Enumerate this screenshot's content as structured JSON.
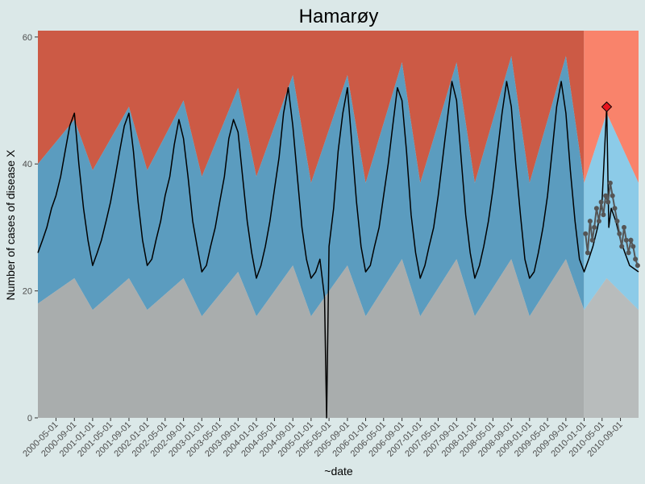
{
  "chart_data": {
    "type": "line",
    "title": "Hamarøy",
    "xlabel": "~date",
    "ylabel": "Number of cases of disease X",
    "ylim": [
      0,
      61
    ],
    "y_ticks": [
      0,
      20,
      40,
      60
    ],
    "x_range": [
      "2000-01-01",
      "2010-12-31"
    ],
    "x_tick_labels": [
      "2000-05-01",
      "2000-09-01",
      "2001-01-01",
      "2001-05-01",
      "2001-09-01",
      "2002-01-01",
      "2002-05-01",
      "2002-09-01",
      "2003-01-01",
      "2003-05-01",
      "2003-09-01",
      "2004-01-01",
      "2004-05-01",
      "2004-09-01",
      "2005-01-01",
      "2005-05-01",
      "2005-09-01",
      "2006-01-01",
      "2006-05-01",
      "2006-09-01",
      "2007-01-01",
      "2007-05-01",
      "2007-09-01",
      "2008-01-01",
      "2008-05-01",
      "2008-09-01",
      "2009-01-01",
      "2009-05-01",
      "2009-09-01",
      "2010-01-01",
      "2010-05-01",
      "2010-09-01"
    ],
    "baseline_end": "2009-12-31",
    "zones": {
      "baseline_low": "#a9adad",
      "baseline_mid": "#5b9cbf",
      "baseline_high": "#cc5a45",
      "current_low": "#b8bcbc",
      "current_mid": "#8ccbe8",
      "current_high": "#f9836b"
    },
    "threshold_series": [
      {
        "date": "2000-01-01",
        "lower": 18,
        "upper": 40,
        "max": 61
      },
      {
        "date": "2000-09-01",
        "lower": 22,
        "upper": 47,
        "max": 61
      },
      {
        "date": "2001-01-01",
        "lower": 17,
        "upper": 39,
        "max": 61
      },
      {
        "date": "2001-09-01",
        "lower": 22,
        "upper": 49,
        "max": 61
      },
      {
        "date": "2002-01-01",
        "lower": 17,
        "upper": 39,
        "max": 61
      },
      {
        "date": "2002-09-01",
        "lower": 22,
        "upper": 50,
        "max": 61
      },
      {
        "date": "2003-01-01",
        "lower": 16,
        "upper": 38,
        "max": 61
      },
      {
        "date": "2003-09-01",
        "lower": 23,
        "upper": 52,
        "max": 61
      },
      {
        "date": "2004-01-01",
        "lower": 16,
        "upper": 38,
        "max": 61
      },
      {
        "date": "2004-09-01",
        "lower": 24,
        "upper": 54,
        "max": 61
      },
      {
        "date": "2005-01-01",
        "lower": 16,
        "upper": 37,
        "max": 61
      },
      {
        "date": "2005-09-01",
        "lower": 24,
        "upper": 54,
        "max": 61
      },
      {
        "date": "2006-01-01",
        "lower": 16,
        "upper": 37,
        "max": 61
      },
      {
        "date": "2006-09-01",
        "lower": 25,
        "upper": 56,
        "max": 61
      },
      {
        "date": "2007-01-01",
        "lower": 16,
        "upper": 37,
        "max": 61
      },
      {
        "date": "2007-09-01",
        "lower": 25,
        "upper": 56,
        "max": 61
      },
      {
        "date": "2008-01-01",
        "lower": 16,
        "upper": 37,
        "max": 61
      },
      {
        "date": "2008-09-01",
        "lower": 25,
        "upper": 57,
        "max": 61
      },
      {
        "date": "2009-01-01",
        "lower": 16,
        "upper": 37,
        "max": 61
      },
      {
        "date": "2009-09-01",
        "lower": 25,
        "upper": 57,
        "max": 61
      },
      {
        "date": "2010-01-01",
        "lower": 17,
        "upper": 37,
        "max": 61
      },
      {
        "date": "2010-06-01",
        "lower": 22,
        "upper": 48,
        "max": 61
      },
      {
        "date": "2010-12-31",
        "lower": 17,
        "upper": 37,
        "max": 61
      }
    ],
    "series": [
      {
        "style": "line",
        "color": "#000000",
        "points": [
          [
            "2000-01-01",
            26
          ],
          [
            "2000-02-01",
            28
          ],
          [
            "2000-03-01",
            30
          ],
          [
            "2000-04-01",
            33
          ],
          [
            "2000-05-01",
            35
          ],
          [
            "2000-06-01",
            38
          ],
          [
            "2000-07-01",
            42
          ],
          [
            "2000-08-01",
            46
          ],
          [
            "2000-09-01",
            48
          ],
          [
            "2000-10-01",
            40
          ],
          [
            "2000-11-01",
            33
          ],
          [
            "2000-12-01",
            28
          ],
          [
            "2001-01-01",
            24
          ],
          [
            "2001-02-01",
            26
          ],
          [
            "2001-03-01",
            28
          ],
          [
            "2001-04-01",
            31
          ],
          [
            "2001-05-01",
            34
          ],
          [
            "2001-06-01",
            38
          ],
          [
            "2001-07-01",
            42
          ],
          [
            "2001-08-01",
            46
          ],
          [
            "2001-09-01",
            48
          ],
          [
            "2001-10-01",
            42
          ],
          [
            "2001-11-01",
            34
          ],
          [
            "2001-12-01",
            28
          ],
          [
            "2002-01-01",
            24
          ],
          [
            "2002-02-01",
            25
          ],
          [
            "2002-03-01",
            28
          ],
          [
            "2002-04-01",
            31
          ],
          [
            "2002-05-01",
            35
          ],
          [
            "2002-06-01",
            38
          ],
          [
            "2002-07-01",
            43
          ],
          [
            "2002-08-01",
            47
          ],
          [
            "2002-09-01",
            44
          ],
          [
            "2002-10-01",
            38
          ],
          [
            "2002-11-01",
            31
          ],
          [
            "2002-12-01",
            27
          ],
          [
            "2003-01-01",
            23
          ],
          [
            "2003-02-01",
            24
          ],
          [
            "2003-03-01",
            27
          ],
          [
            "2003-04-01",
            30
          ],
          [
            "2003-05-01",
            34
          ],
          [
            "2003-06-01",
            38
          ],
          [
            "2003-07-01",
            44
          ],
          [
            "2003-08-01",
            47
          ],
          [
            "2003-09-01",
            45
          ],
          [
            "2003-10-01",
            38
          ],
          [
            "2003-11-01",
            31
          ],
          [
            "2003-12-01",
            26
          ],
          [
            "2004-01-01",
            22
          ],
          [
            "2004-02-01",
            24
          ],
          [
            "2004-03-01",
            27
          ],
          [
            "2004-04-01",
            31
          ],
          [
            "2004-05-01",
            36
          ],
          [
            "2004-06-01",
            41
          ],
          [
            "2004-07-01",
            48
          ],
          [
            "2004-08-01",
            52
          ],
          [
            "2004-09-01",
            46
          ],
          [
            "2004-10-01",
            38
          ],
          [
            "2004-11-01",
            30
          ],
          [
            "2004-12-01",
            25
          ],
          [
            "2005-01-01",
            22
          ],
          [
            "2005-02-01",
            23
          ],
          [
            "2005-03-01",
            25
          ],
          [
            "2005-04-01",
            19
          ],
          [
            "2005-04-15",
            0
          ],
          [
            "2005-05-01",
            27
          ],
          [
            "2005-06-01",
            33
          ],
          [
            "2005-07-01",
            42
          ],
          [
            "2005-08-01",
            48
          ],
          [
            "2005-09-01",
            52
          ],
          [
            "2005-10-01",
            43
          ],
          [
            "2005-11-01",
            34
          ],
          [
            "2005-12-01",
            27
          ],
          [
            "2006-01-01",
            23
          ],
          [
            "2006-02-01",
            24
          ],
          [
            "2006-03-01",
            27
          ],
          [
            "2006-04-01",
            30
          ],
          [
            "2006-05-01",
            35
          ],
          [
            "2006-06-01",
            40
          ],
          [
            "2006-07-01",
            46
          ],
          [
            "2006-08-01",
            52
          ],
          [
            "2006-09-01",
            50
          ],
          [
            "2006-10-01",
            42
          ],
          [
            "2006-11-01",
            32
          ],
          [
            "2006-12-01",
            26
          ],
          [
            "2007-01-01",
            22
          ],
          [
            "2007-02-01",
            24
          ],
          [
            "2007-03-01",
            27
          ],
          [
            "2007-04-01",
            30
          ],
          [
            "2007-05-01",
            35
          ],
          [
            "2007-06-01",
            41
          ],
          [
            "2007-07-01",
            47
          ],
          [
            "2007-08-01",
            53
          ],
          [
            "2007-09-01",
            50
          ],
          [
            "2007-10-01",
            41
          ],
          [
            "2007-11-01",
            32
          ],
          [
            "2007-12-01",
            26
          ],
          [
            "2008-01-01",
            22
          ],
          [
            "2008-02-01",
            24
          ],
          [
            "2008-03-01",
            27
          ],
          [
            "2008-04-01",
            31
          ],
          [
            "2008-05-01",
            36
          ],
          [
            "2008-06-01",
            42
          ],
          [
            "2008-07-01",
            48
          ],
          [
            "2008-08-01",
            53
          ],
          [
            "2008-09-01",
            49
          ],
          [
            "2008-10-01",
            40
          ],
          [
            "2008-11-01",
            32
          ],
          [
            "2008-12-01",
            25
          ],
          [
            "2009-01-01",
            22
          ],
          [
            "2009-02-01",
            23
          ],
          [
            "2009-03-01",
            26
          ],
          [
            "2009-04-01",
            30
          ],
          [
            "2009-05-01",
            35
          ],
          [
            "2009-06-01",
            42
          ],
          [
            "2009-07-01",
            49
          ],
          [
            "2009-08-01",
            53
          ],
          [
            "2009-09-01",
            48
          ],
          [
            "2009-10-01",
            39
          ],
          [
            "2009-11-01",
            31
          ],
          [
            "2009-12-01",
            25
          ],
          [
            "2010-01-01",
            23
          ],
          [
            "2010-02-01",
            25
          ],
          [
            "2010-03-01",
            27
          ],
          [
            "2010-04-01",
            30
          ],
          [
            "2010-05-01",
            34
          ],
          [
            "2010-06-01",
            49
          ],
          [
            "2010-06-15",
            30
          ],
          [
            "2010-07-01",
            33
          ],
          [
            "2010-08-01",
            31
          ],
          [
            "2010-09-01",
            28
          ],
          [
            "2010-10-01",
            26
          ],
          [
            "2010-11-01",
            24
          ],
          [
            "2010-12-31",
            23
          ]
        ]
      },
      {
        "style": "points",
        "color": "#555555",
        "points": [
          [
            "2010-01-10",
            29
          ],
          [
            "2010-01-25",
            26
          ],
          [
            "2010-02-10",
            31
          ],
          [
            "2010-02-25",
            28
          ],
          [
            "2010-03-10",
            30
          ],
          [
            "2010-03-25",
            33
          ],
          [
            "2010-04-10",
            31
          ],
          [
            "2010-04-25",
            34
          ],
          [
            "2010-05-10",
            32
          ],
          [
            "2010-05-25",
            35
          ],
          [
            "2010-06-10",
            34
          ],
          [
            "2010-06-25",
            37
          ],
          [
            "2010-07-10",
            35
          ],
          [
            "2010-07-25",
            33
          ],
          [
            "2010-08-10",
            31
          ],
          [
            "2010-08-25",
            29
          ],
          [
            "2010-09-10",
            27
          ],
          [
            "2010-09-25",
            30
          ],
          [
            "2010-10-10",
            28
          ],
          [
            "2010-10-25",
            26
          ],
          [
            "2010-11-10",
            28
          ],
          [
            "2010-11-25",
            27
          ],
          [
            "2010-12-10",
            25
          ],
          [
            "2010-12-25",
            24
          ]
        ]
      }
    ],
    "alert_points": [
      {
        "date": "2010-06-01",
        "value": 49,
        "color": "#e8141e"
      }
    ]
  }
}
